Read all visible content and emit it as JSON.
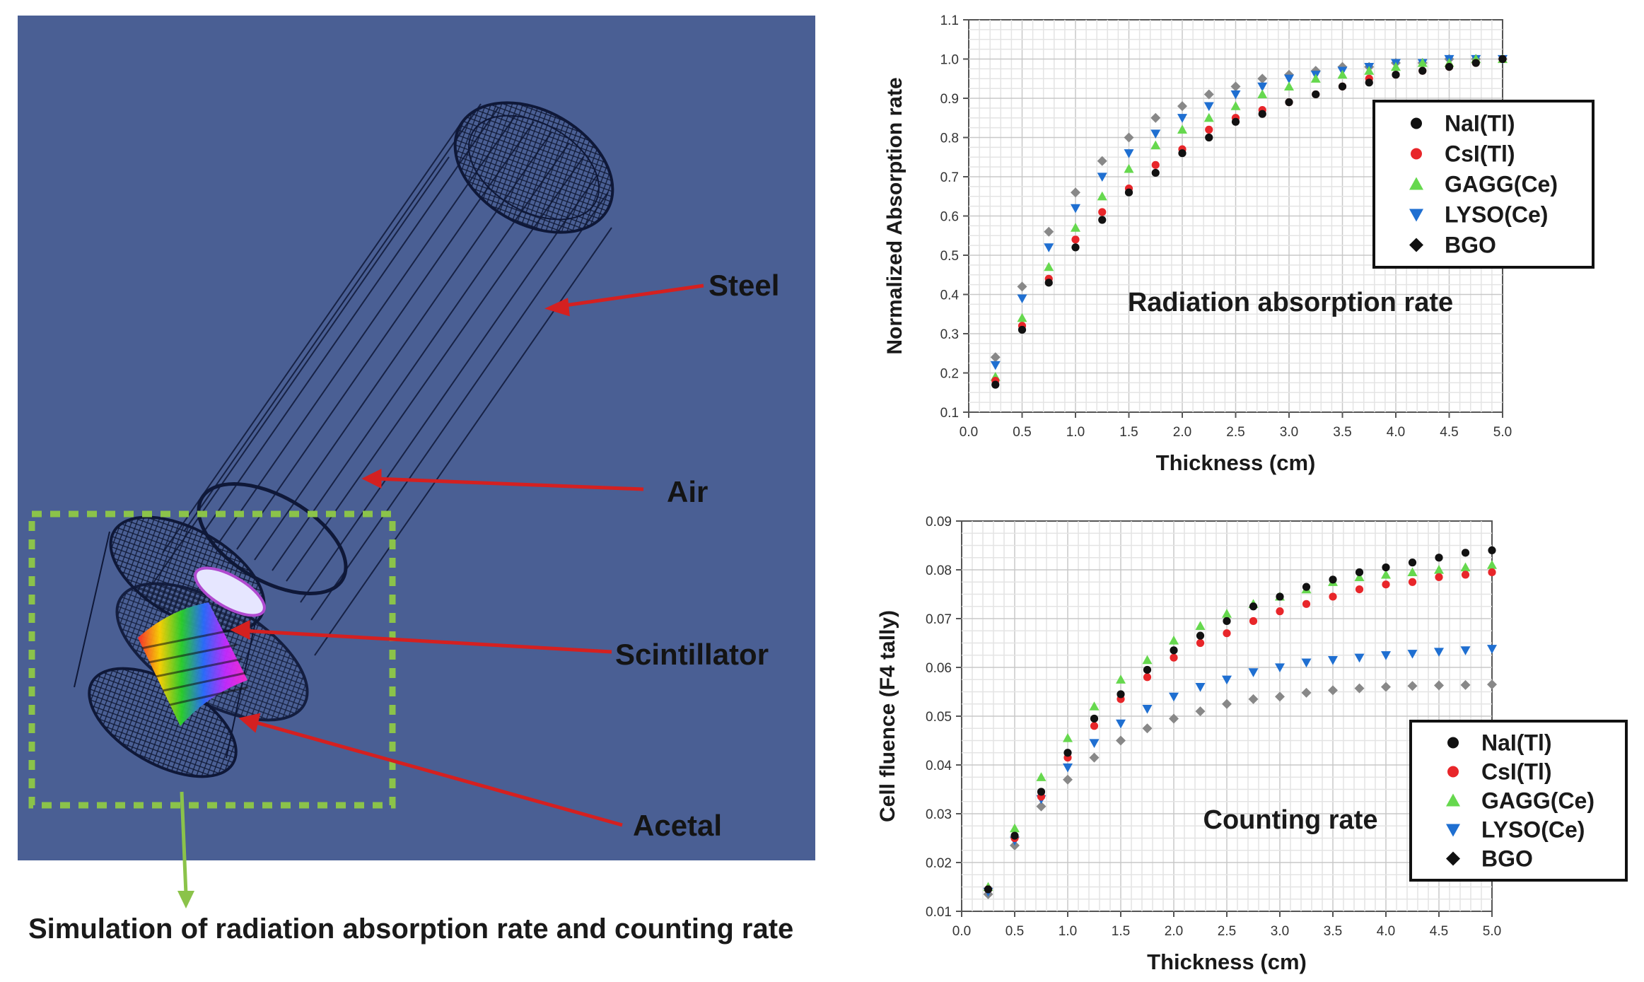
{
  "diagram": {
    "labels": {
      "steel": "Steel",
      "air": "Air",
      "scintillator": "Scintillator",
      "acetal": "Acetal"
    },
    "caption": "Simulation of radiation absorption rate and counting rate",
    "colors": {
      "background": "#4a5f94",
      "arrow": "#d42020",
      "selection_box": "#8bc34a",
      "wireframe": "#101a3a"
    }
  },
  "chart_data": [
    {
      "type": "scatter",
      "title": "Radiation absorption rate",
      "xlabel": "Thickness (cm)",
      "ylabel": "Normalized Absorption rate",
      "xlim": [
        0.0,
        5.0
      ],
      "ylim": [
        0.1,
        1.1
      ],
      "xticks": [
        "0.0",
        "0.5",
        "1.0",
        "1.5",
        "2.0",
        "2.5",
        "3.0",
        "3.5",
        "4.0",
        "4.5",
        "5.0"
      ],
      "yticks": [
        "0.1",
        "0.2",
        "0.3",
        "0.4",
        "0.5",
        "0.6",
        "0.7",
        "0.8",
        "0.9",
        "1.0",
        "1.1"
      ],
      "legend_position": "top-right",
      "x": [
        0.25,
        0.5,
        0.75,
        1.0,
        1.25,
        1.5,
        1.75,
        2.0,
        2.25,
        2.5,
        2.75,
        3.0,
        3.25,
        3.5,
        3.75,
        4.0,
        4.25,
        4.5,
        4.75,
        5.0
      ],
      "series": [
        {
          "name": "NaI(Tl)",
          "marker": "circle",
          "color": "#111111",
          "values": [
            0.17,
            0.31,
            0.43,
            0.52,
            0.59,
            0.66,
            0.71,
            0.76,
            0.8,
            0.84,
            0.86,
            0.89,
            0.91,
            0.93,
            0.94,
            0.96,
            0.97,
            0.98,
            0.99,
            1.0
          ]
        },
        {
          "name": "CsI(Tl)",
          "marker": "circle",
          "color": "#e8262a",
          "values": [
            0.18,
            0.32,
            0.44,
            0.54,
            0.61,
            0.67,
            0.73,
            0.77,
            0.82,
            0.85,
            0.87,
            0.89,
            0.91,
            0.93,
            0.95,
            0.96,
            0.97,
            0.98,
            0.99,
            1.0
          ]
        },
        {
          "name": "GAGG(Ce)",
          "marker": "triangle-up",
          "color": "#66d84e",
          "values": [
            0.19,
            0.34,
            0.47,
            0.57,
            0.65,
            0.72,
            0.78,
            0.82,
            0.85,
            0.88,
            0.91,
            0.93,
            0.95,
            0.96,
            0.97,
            0.98,
            0.99,
            0.99,
            1.0,
            1.0
          ]
        },
        {
          "name": "LYSO(Ce)",
          "marker": "triangle-down",
          "color": "#1f6fd1",
          "values": [
            0.22,
            0.39,
            0.52,
            0.62,
            0.7,
            0.76,
            0.81,
            0.85,
            0.88,
            0.91,
            0.93,
            0.95,
            0.96,
            0.97,
            0.98,
            0.99,
            0.99,
            1.0,
            1.0,
            1.0
          ]
        },
        {
          "name": "BGO",
          "marker": "diamond",
          "color": "#888888",
          "values": [
            0.24,
            0.42,
            0.56,
            0.66,
            0.74,
            0.8,
            0.85,
            0.88,
            0.91,
            0.93,
            0.95,
            0.96,
            0.97,
            0.98,
            0.98,
            0.99,
            0.99,
            1.0,
            1.0,
            1.0
          ]
        }
      ]
    },
    {
      "type": "scatter",
      "title": "Counting rate",
      "xlabel": "Thickness (cm)",
      "ylabel": "Cell fluence (F4 tally)",
      "xlim": [
        0.0,
        5.0
      ],
      "ylim": [
        0.01,
        0.09
      ],
      "xticks": [
        "0.0",
        "0.5",
        "1.0",
        "1.5",
        "2.0",
        "2.5",
        "3.0",
        "3.5",
        "4.0",
        "4.5",
        "5.0"
      ],
      "yticks": [
        "0.01",
        "0.02",
        "0.03",
        "0.04",
        "0.05",
        "0.06",
        "0.07",
        "0.08",
        "0.09"
      ],
      "legend_position": "bottom-right",
      "x": [
        0.25,
        0.5,
        0.75,
        1.0,
        1.25,
        1.5,
        1.75,
        2.0,
        2.25,
        2.5,
        2.75,
        3.0,
        3.25,
        3.5,
        3.75,
        4.0,
        4.25,
        4.5,
        4.75,
        5.0
      ],
      "series": [
        {
          "name": "NaI(Tl)",
          "marker": "circle",
          "color": "#111111",
          "values": [
            0.0145,
            0.0255,
            0.0345,
            0.0425,
            0.0495,
            0.0545,
            0.0595,
            0.0635,
            0.0665,
            0.0695,
            0.0725,
            0.0745,
            0.0765,
            0.078,
            0.0795,
            0.0805,
            0.0815,
            0.0825,
            0.0835,
            0.084
          ]
        },
        {
          "name": "CsI(Tl)",
          "marker": "circle",
          "color": "#e8262a",
          "values": [
            0.0145,
            0.025,
            0.0335,
            0.0415,
            0.048,
            0.0535,
            0.058,
            0.062,
            0.065,
            0.067,
            0.0695,
            0.0715,
            0.073,
            0.0745,
            0.076,
            0.077,
            0.0775,
            0.0785,
            0.079,
            0.0795
          ]
        },
        {
          "name": "GAGG(Ce)",
          "marker": "triangle-up",
          "color": "#66d84e",
          "values": [
            0.015,
            0.027,
            0.0375,
            0.0455,
            0.052,
            0.0575,
            0.0615,
            0.0655,
            0.0685,
            0.071,
            0.073,
            0.0745,
            0.076,
            0.0775,
            0.0785,
            0.079,
            0.0795,
            0.08,
            0.0805,
            0.081
          ]
        },
        {
          "name": "LYSO(Ce)",
          "marker": "triangle-down",
          "color": "#1f6fd1",
          "values": [
            0.014,
            0.0245,
            0.033,
            0.0395,
            0.0445,
            0.0485,
            0.0515,
            0.054,
            0.056,
            0.0575,
            0.059,
            0.06,
            0.061,
            0.0615,
            0.062,
            0.0625,
            0.0628,
            0.0632,
            0.0635,
            0.0638
          ]
        },
        {
          "name": "BGO",
          "marker": "diamond",
          "color": "#888888",
          "values": [
            0.0135,
            0.0235,
            0.0315,
            0.037,
            0.0415,
            0.045,
            0.0475,
            0.0495,
            0.051,
            0.0525,
            0.0535,
            0.054,
            0.0548,
            0.0553,
            0.0557,
            0.056,
            0.0562,
            0.0563,
            0.0564,
            0.0565
          ]
        }
      ]
    }
  ]
}
